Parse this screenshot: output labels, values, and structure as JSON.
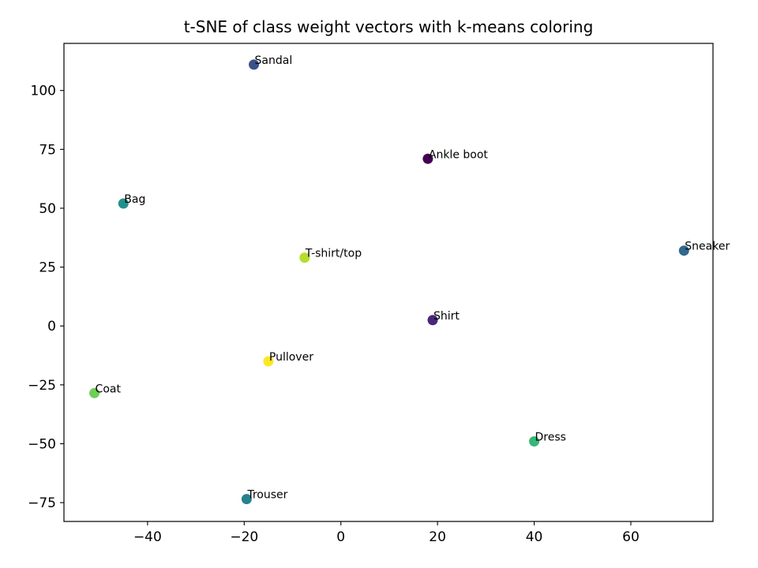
{
  "chart_data": {
    "type": "scatter",
    "title": "t-SNE of class weight vectors with k-means coloring",
    "xlabel": "",
    "ylabel": "",
    "xlim": [
      -57.3,
      77
    ],
    "ylim": [
      -83,
      120
    ],
    "xticks": [
      -40,
      -20,
      0,
      20,
      40,
      60
    ],
    "yticks": [
      -75,
      -50,
      -25,
      0,
      25,
      50,
      75,
      100
    ],
    "grid": false,
    "points": [
      {
        "label": "Sandal",
        "x": -18,
        "y": 111,
        "color": "#3b528b"
      },
      {
        "label": "Ankle boot",
        "x": 18,
        "y": 71,
        "color": "#440154"
      },
      {
        "label": "Bag",
        "x": -45,
        "y": 52,
        "color": "#21918c"
      },
      {
        "label": "Sneaker",
        "x": 71,
        "y": 32,
        "color": "#31688e"
      },
      {
        "label": "T-shirt/top",
        "x": -7.5,
        "y": 29,
        "color": "#b5de2b"
      },
      {
        "label": "Shirt",
        "x": 19,
        "y": 2.5,
        "color": "#482878"
      },
      {
        "label": "Pullover",
        "x": -15,
        "y": -15,
        "color": "#fde725"
      },
      {
        "label": "Coat",
        "x": -51,
        "y": -28.5,
        "color": "#6ece58"
      },
      {
        "label": "Dress",
        "x": 40,
        "y": -49,
        "color": "#35b779"
      },
      {
        "label": "Trouser",
        "x": -19.5,
        "y": -73.5,
        "color": "#26828e"
      }
    ]
  }
}
